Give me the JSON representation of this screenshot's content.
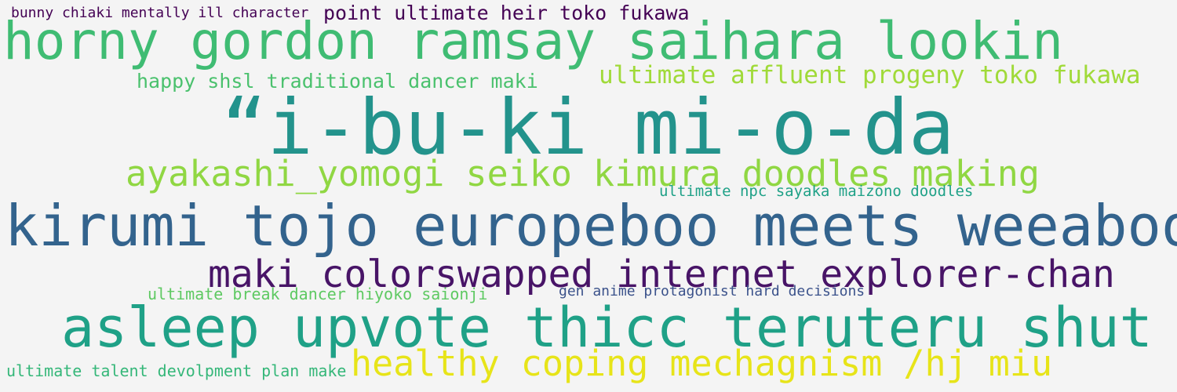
{
  "words": [
    {
      "text": "bunny chiaki mentally ill character",
      "color": "#440154"
    },
    {
      "text": "point ultimate heir toko fukawa",
      "color": "#440154"
    },
    {
      "text": "horny gordon ramsay saihara lookin",
      "color": "#3fbc73"
    },
    {
      "text": "happy shsl traditional dancer maki",
      "color": "#4ac16d"
    },
    {
      "text": "ultimate affluent progeny toko fukawa",
      "color": "#a0da39"
    },
    {
      "text": "“i-bu-ki mi-o-da",
      "color": "#23938c"
    },
    {
      "text": "ayakashi_yomogi seiko kimura doodles making",
      "color": "#90d743"
    },
    {
      "text": "ultimate npc sayaka maizono doodles",
      "color": "#1fa187"
    },
    {
      "text": "kirumi tojo europeboo meets weeaboo",
      "color": "#33638d"
    },
    {
      "text": "maki colorswapped internet explorer-chan",
      "color": "#481467"
    },
    {
      "text": "ultimate break dancer hiyoko saionji",
      "color": "#5ec962"
    },
    {
      "text": "gen anime protagonist hard decisions",
      "color": "#3b528b"
    },
    {
      "text": "asleep upvote thicc teruteru shut",
      "color": "#1fa187"
    },
    {
      "text": "healthy coping mechagnism /hj miu",
      "color": "#e7e419"
    },
    {
      "text": "ultimate talent devolpment plan make",
      "color": "#35b779"
    }
  ]
}
